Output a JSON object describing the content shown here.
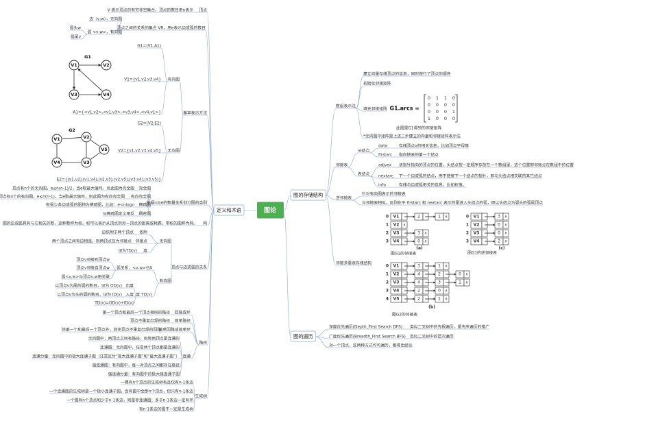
{
  "tree": {
    "label": "图论",
    "children": [
      {
        "label": "定义和术语",
        "children": [
          {
            "label": "顶点",
            "children": [
              {
                "label": "V 表示顶点的有穷非空集合，顶点的数目用n表示"
              }
            ]
          },
          {
            "label": "顶点之间的关系的集合 VR，用e表示边或弧的数目",
            "children": [
              {
                "label": "边（v,w），无向图"
              },
              {
                "label": "弧 <v,w>，有向图",
                "children": [
                  {
                    "label": "弧头w"
                  },
                  {
                    "label": "弧尾v"
                  }
                ]
              }
            ]
          },
          {
            "label": "基本表示方法",
            "children": [
              {
                "label": "有向图",
                "children": [
                  {
                    "label": "G1=(V1,A1)"
                  },
                  {
                    "label": "V1={v1,v2,v3,v4}"
                  },
                  {
                    "label": "A1={<v1,v2>,<v1,v3>,<v3,v4>,<v4,v1>}"
                  }
                ]
              },
              {
                "label": "无向图",
                "children": [
                  {
                    "label": "G2=(V2,E2)"
                  },
                  {
                    "label": "V2={v1,v2,v3,v4,v5}"
                  },
                  {
                    "label": "E2={(v1,v2),(v1,v4),(v2,v3),(v2,v5),(v3,v4),(v3,v5)}"
                  }
                ]
              }
            ]
          },
          {
            "label": "依据n与e的数量关系划分图的类别",
            "children": [
              {
                "label": "完全图",
                "children": [
                  {
                    "label": "顶点有n个的无向图，e≤n(n-1)/2，当e取最大值时，则此图为完全图"
                  }
                ]
              },
              {
                "label": "有向完全图",
                "children": [
                  {
                    "label": "顶点有n个的有向图，e≤n(n-1)，当e取最大值时，则此图为有向完全图"
                  }
                ]
              },
              {
                "label": "稀疏图",
                "children": [
                  {
                    "label": "有很少条边或弧的图称为稀疏图，比如：e<nlogn"
                  }
                ]
              },
              {
                "label": "稠密图",
                "children": [
                  {
                    "label": "与稀疏图定义相反"
                  }
                ]
              }
            ]
          },
          {
            "label": "网",
            "children": [
              {
                "label": "图的边或弧具有与它相关的数，这种数称为权。权可以表示从顶点到另一顶点的距离或耗费。带权的图称为网。"
              }
            ]
          },
          {
            "label": "顶点与边或弧的关系",
            "children": [
              {
                "label": "无向图",
                "children": [
                  {
                    "label": "依附",
                    "children": [
                      {
                        "label": "边依附于两个顶点"
                      }
                    ]
                  },
                  {
                    "label": "邻接点",
                    "children": [
                      {
                        "label": "两个顶点之间有边相连，则两顶点互为邻接点"
                      }
                    ]
                  },
                  {
                    "label": "度",
                    "children": [
                      {
                        "label": "记为TD(v)"
                      }
                    ]
                  }
                ]
              },
              {
                "label": "有向图",
                "children": [
                  {
                    "label": "弧关系：<v,w>∈A",
                    "children": [
                      {
                        "label": "顶点v邻接到顶点w"
                      },
                      {
                        "label": "顶点v邻接自顶点w"
                      },
                      {
                        "label": "弧<v,w>与顶点v,w相关联"
                      }
                    ]
                  },
                  {
                    "label": "度 TD(v)",
                    "children": [
                      {
                        "label": "出度",
                        "children": [
                          {
                            "label": "以顶点v为尾的弧的数目，记为 OD(v)"
                          }
                        ]
                      },
                      {
                        "label": "入度",
                        "children": [
                          {
                            "label": "以顶点v为头的弧的数目，记为 ID(v)"
                          }
                        ]
                      },
                      {
                        "label": "TD(v)=OD(v)+ID(v)"
                      }
                    ]
                  }
                ]
              }
            ]
          },
          {
            "label": "路径",
            "children": [
              {
                "label": "回路或环",
                "children": [
                  {
                    "label": "第一个顶点和最后一个顶点相同的路径"
                  }
                ]
              },
              {
                "label": "简单路径",
                "children": [
                  {
                    "label": "顶点不重复出现的路径"
                  }
                ]
              },
              {
                "label": "简单回路或简单环",
                "children": [
                  {
                    "label": "除第一个和最后一个顶点外，其余顶点不重复出现的回路"
                  }
                ]
              },
              {
                "label": "连通",
                "children": [
                  {
                    "label": "无向图中，两顶点之间有路径，则称两顶点是连通的"
                  },
                  {
                    "label": "连通图：无向图中，任意两个顶点都是连通的"
                  },
                  {
                    "label": "连通分量：无向图中的极大连通子图（注意区分“极大连通子图”和“最大连通子图”）"
                  },
                  {
                    "label": "强连通图：有向图中，每一对顶点之间都存在路径"
                  },
                  {
                    "label": "强连通分量：有向图中的极大强连通子图"
                  }
                ]
              }
            ]
          },
          {
            "label": "生成树",
            "children": [
              {
                "label": "一棵有n个顶点的生成树有且仅有n-1条边"
              },
              {
                "label": "一个连通图的生成树是一个极小连通子图，含有图中全部n个顶点，但只有n-1条边"
              },
              {
                "label": "一个图有n个顶点和少于n-1条边，则是非连通图；多于n-1条边一定有环"
              },
              {
                "label": "有n-1条边的图不一定是生成树"
              }
            ]
          }
        ]
      },
      {
        "label": "图的存储结构",
        "children": [
          {
            "label": "数组表示法",
            "children": [
              {
                "label": "建立向量存储顶点的信息，同时按行了顶点的顺序"
              },
              {
                "label": "初始化邻接矩阵"
              },
              {
                "label": "填充邻接矩阵"
              },
              {
                "label": "*无向图中矩阵是上述三步建立的向量和邻接矩阵表示法"
              }
            ]
          },
          {
            "label": "邻接表",
            "children": [
              {
                "label": "头结点",
                "children": [
                  {
                    "label": "data",
                    "children": [
                      {
                        "label": "存储顶点v的相关信息，比如顶点字母等"
                      }
                    ]
                  },
                  {
                    "label": "firstarc",
                    "children": [
                      {
                        "label": "指向链表的第一个结点"
                      }
                    ]
                  }
                ]
              },
              {
                "label": "表结点",
                "children": [
                  {
                    "label": "adjvex",
                    "children": [
                      {
                        "label": "该指针指向的顶点的位置，头结点按一定顺序存放在一个数组里，这个位置即邻接点在数组中的位置"
                      }
                    ]
                  },
                  {
                    "label": "nextarc",
                    "children": [
                      {
                        "label": "下一个边或弧的结点，用于链接下一个结点的指针，即与头结点相关联的其它结点"
                      }
                    ]
                  },
                  {
                    "label": "info",
                    "children": [
                      {
                        "label": "存储与边或弧相关的信息，比如权值。"
                      }
                    ]
                  }
                ]
              }
            ]
          },
          {
            "label": "逆邻接表",
            "children": [
              {
                "label": "针对有向图表示的邻接表"
              },
              {
                "label": "与邻接表相似，区别在于 firstarc 和 nextarc 表示的是进入头结点的弧，即以头结点为弧头的弧尾顶点"
              }
            ]
          },
          {
            "label": "邻接多重表存储结构"
          }
        ]
      },
      {
        "label": "图的遍历",
        "children": [
          {
            "label": "深度优先遍历(Depth_First Search DFS)",
            "children": [
              {
                "label": "类似二叉树中的先根遍历，是先序遍历的推广"
              }
            ]
          },
          {
            "label": "广度优先遍历(Breadth_First Search BFS)",
            "children": [
              {
                "label": "类似二叉树中的层次遍历"
              }
            ]
          },
          {
            "label": "对一个顶点，这两种方式均可遍历，都得出结论"
          }
        ]
      }
    ]
  },
  "figures": {
    "g1": {
      "title": "G1",
      "vertices": [
        "V1",
        "V2",
        "V3",
        "V4"
      ]
    },
    "g2": {
      "title": "G2",
      "vertices": [
        "V1",
        "V2",
        "V3",
        "V4",
        "V5"
      ]
    }
  },
  "matrix": {
    "label": "G1.arcs =",
    "rows": [
      [
        0,
        1,
        1,
        0
      ],
      [
        0,
        0,
        0,
        0
      ],
      [
        0,
        0,
        0,
        1
      ],
      [
        1,
        0,
        0,
        0
      ]
    ],
    "caption": "此图是G1得到的邻接矩阵"
  },
  "lists": [
    {
      "tag": "(a)",
      "caption": "图G1的邻接表",
      "null_mark": "∧",
      "rows": [
        {
          "index": 0,
          "vertex": "V1",
          "adj": [
            2,
            1
          ]
        },
        {
          "index": 1,
          "vertex": "V2",
          "adj": []
        },
        {
          "index": 2,
          "vertex": "V3",
          "adj": [
            3
          ]
        },
        {
          "index": 3,
          "vertex": "V4",
          "adj": [
            0
          ]
        }
      ]
    },
    {
      "tag": "(c)",
      "caption": "图G1的逆邻接表",
      "null_mark": "∧",
      "rows": [
        {
          "index": 0,
          "vertex": "V1",
          "adj": [
            3
          ]
        },
        {
          "index": 1,
          "vertex": "V2",
          "adj": [
            0
          ]
        },
        {
          "index": 2,
          "vertex": "V3",
          "adj": [
            0
          ]
        },
        {
          "index": 3,
          "vertex": "V4",
          "adj": [
            2
          ]
        }
      ]
    },
    {
      "tag": "(b)",
      "caption": "图G2的邻接表",
      "null_mark": "∧",
      "rows": [
        {
          "index": 0,
          "vertex": "V1",
          "adj": [
            3,
            1
          ]
        },
        {
          "index": 1,
          "vertex": "V2",
          "adj": [
            4,
            2,
            0
          ]
        },
        {
          "index": 2,
          "vertex": "V3",
          "adj": [
            4,
            3,
            1
          ]
        },
        {
          "index": 3,
          "vertex": "V4",
          "adj": [
            2,
            0
          ]
        },
        {
          "index": 4,
          "vertex": "V5",
          "adj": [
            2,
            1
          ]
        }
      ]
    }
  ]
}
